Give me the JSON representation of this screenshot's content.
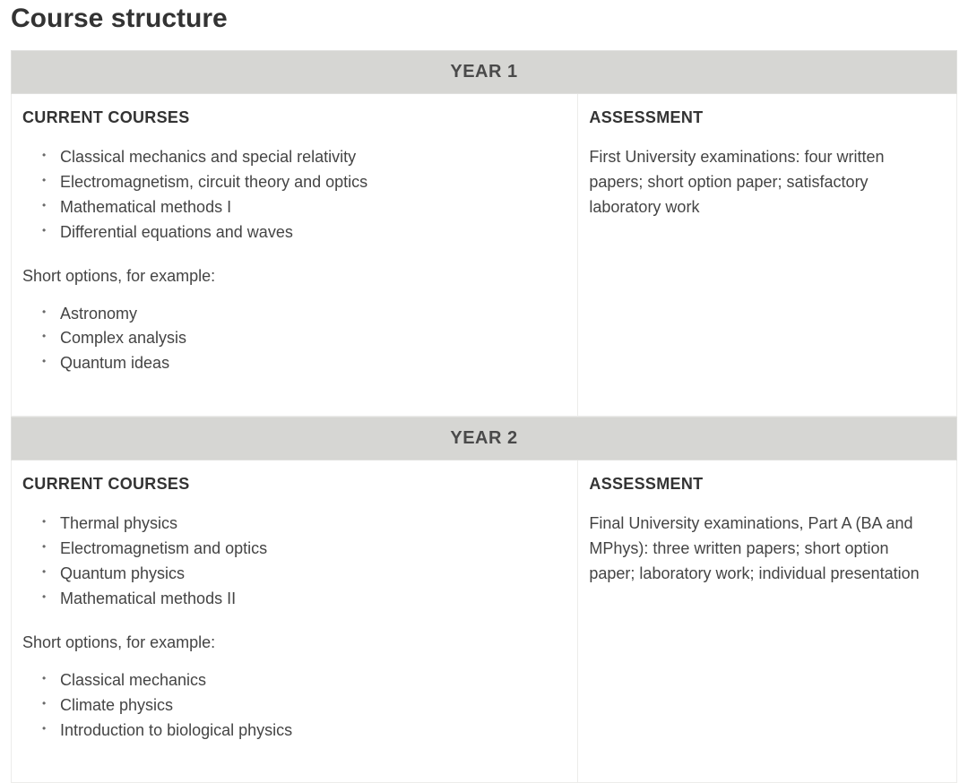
{
  "page_title": "Course structure",
  "colors": {
    "header_bg": "#d6d6d3",
    "header_text": "#4a4a4a",
    "body_text": "#444444",
    "title_text": "#333333",
    "border": "#ececea",
    "background": "#ffffff"
  },
  "typography": {
    "page_title_pt": 30,
    "year_header_pt": 20,
    "heading_pt": 18,
    "body_pt": 18,
    "font_family": "Arial"
  },
  "layout": {
    "courses_width_pct": 60,
    "assessment_width_pct": 40
  },
  "years": [
    {
      "header": "YEAR 1",
      "courses_heading": "CURRENT COURSES",
      "core": [
        "Classical mechanics and special relativity",
        "Electromagnetism, circuit theory and optics",
        "Mathematical methods I",
        "Differential equations and waves"
      ],
      "options_intro": "Short options, for example:",
      "options": [
        "Astronomy",
        "Complex analysis",
        "Quantum ideas"
      ],
      "assessment_heading": "ASSESSMENT",
      "assessment_text": "First University examinations: four written papers; short option paper; satisfactory laboratory work"
    },
    {
      "header": "YEAR 2",
      "courses_heading": "CURRENT COURSES",
      "core": [
        "Thermal physics",
        "Electromagnetism and optics",
        "Quantum physics",
        "Mathematical methods II"
      ],
      "options_intro": "Short options, for example:",
      "options": [
        "Classical mechanics",
        "Climate physics",
        "Introduction to biological physics"
      ],
      "assessment_heading": "ASSESSMENT",
      "assessment_text": "Final University examinations, Part A (BA and MPhys): three written papers; short option paper; laboratory work; individual presentation"
    }
  ]
}
